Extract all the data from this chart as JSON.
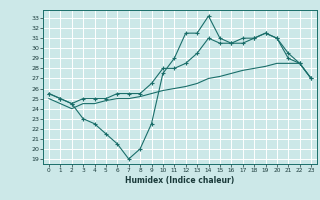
{
  "title": "",
  "xlabel": "Humidex (Indice chaleur)",
  "bg_color": "#cce8e8",
  "grid_color": "#ffffff",
  "line_color": "#1a6e6a",
  "x_ticks": [
    0,
    1,
    2,
    3,
    4,
    5,
    6,
    7,
    8,
    9,
    10,
    11,
    12,
    13,
    14,
    15,
    16,
    17,
    18,
    19,
    20,
    21,
    22,
    23
  ],
  "y_ticks": [
    19,
    20,
    21,
    22,
    23,
    24,
    25,
    26,
    27,
    28,
    29,
    30,
    31,
    32,
    33
  ],
  "ylim": [
    18.5,
    33.8
  ],
  "xlim": [
    -0.5,
    23.5
  ],
  "line1_y": [
    25.5,
    25.0,
    24.5,
    23.0,
    22.5,
    21.5,
    20.5,
    19.0,
    20.0,
    22.5,
    27.5,
    29.0,
    31.5,
    31.5,
    33.2,
    31.0,
    30.5,
    30.5,
    31.0,
    31.5,
    31.0,
    29.0,
    28.5,
    27.0
  ],
  "line2_y": [
    25.5,
    25.0,
    24.5,
    25.0,
    25.0,
    25.0,
    25.5,
    25.5,
    25.5,
    26.5,
    28.0,
    28.0,
    28.5,
    29.5,
    31.0,
    30.5,
    30.5,
    31.0,
    31.0,
    31.5,
    31.0,
    29.5,
    28.5,
    27.0
  ],
  "line3_y": [
    25.0,
    24.5,
    24.0,
    24.5,
    24.5,
    24.8,
    25.0,
    25.0,
    25.2,
    25.5,
    25.8,
    26.0,
    26.2,
    26.5,
    27.0,
    27.2,
    27.5,
    27.8,
    28.0,
    28.2,
    28.5,
    28.5,
    28.5,
    27.0
  ]
}
